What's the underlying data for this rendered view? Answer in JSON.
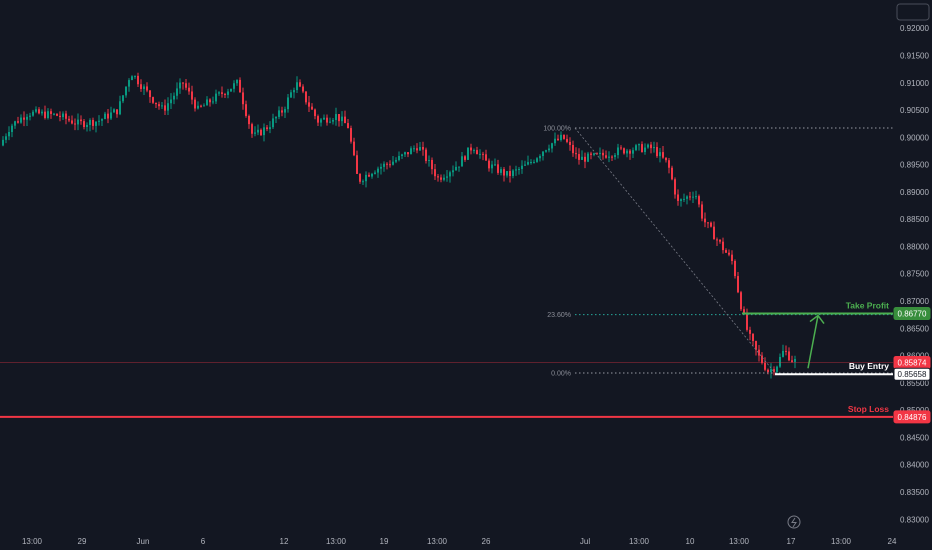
{
  "chart_data": {
    "type": "candlestick",
    "title": "",
    "y_ticks": [
      "0.92000",
      "0.91500",
      "0.91000",
      "0.90500",
      "0.90000",
      "0.89500",
      "0.89000",
      "0.88500",
      "0.88000",
      "0.87500",
      "0.87000",
      "0.86500",
      "0.86000",
      "0.85500",
      "0.85000",
      "0.84500",
      "0.84000",
      "0.83500",
      "0.83000"
    ],
    "x_ticks": [
      "13:00",
      "29",
      "Jun",
      "6",
      "12",
      "13:00",
      "19",
      "13:00",
      "26",
      "Jul",
      "13:00",
      "10",
      "13:00",
      "17",
      "13:00",
      "24"
    ],
    "ylim": [
      0.8295,
      0.9215
    ],
    "fib_levels": [
      {
        "label": "100.00%",
        "value": 0.9017
      },
      {
        "label": "23.60%",
        "value": 0.8675
      },
      {
        "label": "0.00%",
        "value": 0.8568
      }
    ],
    "levels": {
      "take_profit": {
        "label": "Take Profit",
        "value": 0.8677,
        "value_text": "0.86770",
        "color": "#4caf50"
      },
      "buy_entry": {
        "label": "Buy Entry",
        "value": 0.85658,
        "value_text": "0.85658",
        "color": "#ffffff"
      },
      "stop_loss": {
        "label": "Stop Loss",
        "value": 0.84876,
        "value_text": "0.84876",
        "color": "#f23645"
      },
      "current_price": {
        "value": 0.85874,
        "value_text": "0.85874",
        "color": "#f23645"
      }
    },
    "up_color": "#089981",
    "down_color": "#f23645",
    "grid": false,
    "icons": {
      "flash": "lightning-icon"
    }
  }
}
